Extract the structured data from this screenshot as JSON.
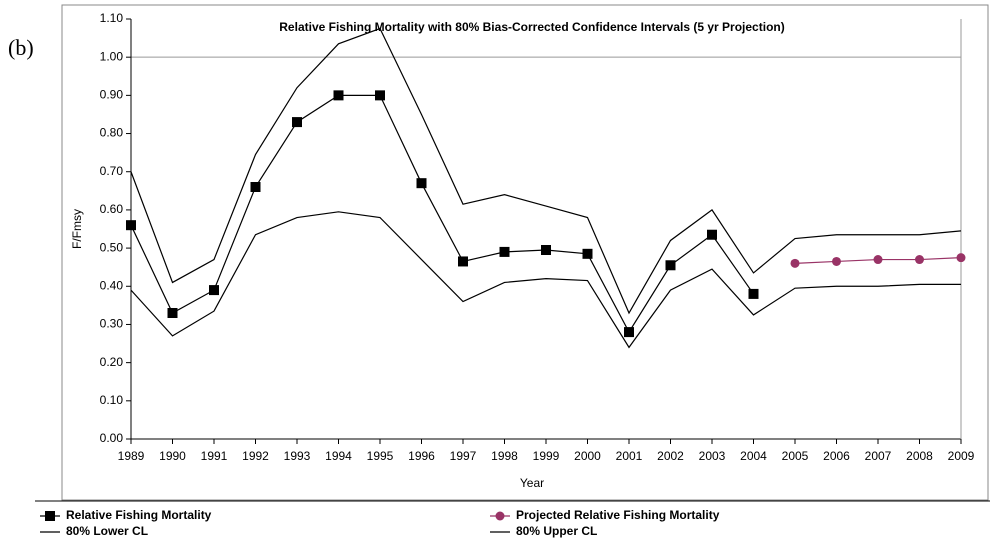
{
  "panel_label": "(b)",
  "chart_data": {
    "type": "line",
    "title": "Relative Fishing Mortality with 80% Bias-Corrected Confidence Intervals (5 yr Projection)",
    "x_label": "Year",
    "y_label": "F/Fmsy",
    "categories": [
      1989,
      1990,
      1991,
      1992,
      1993,
      1994,
      1995,
      1996,
      1997,
      1998,
      1999,
      2000,
      2001,
      2002,
      2003,
      2004,
      2005,
      2006,
      2007,
      2008,
      2009
    ],
    "ylim": [
      0,
      1.1
    ],
    "yticks": [
      {
        "value": 0,
        "label": "0.00"
      },
      {
        "value": 0.1,
        "label": "0.10"
      },
      {
        "value": 0.2,
        "label": "0.20"
      },
      {
        "value": 0.3,
        "label": "0.30"
      },
      {
        "value": 0.4,
        "label": "0.40"
      },
      {
        "value": 0.5,
        "label": "0.50"
      },
      {
        "value": 0.6,
        "label": "0.60"
      },
      {
        "value": 0.7,
        "label": "0.70"
      },
      {
        "value": 0.8,
        "label": "0.80"
      },
      {
        "value": 0.9,
        "label": "0.90"
      },
      {
        "value": 1.0,
        "label": "1.00"
      },
      {
        "value": 1.1,
        "label": "1.10"
      }
    ],
    "reference_line": 1.0,
    "series": [
      {
        "name": "Relative Fishing Mortality",
        "color": "#000000",
        "marker": "square",
        "values": [
          0.56,
          0.33,
          0.39,
          0.66,
          0.83,
          0.9,
          0.9,
          0.67,
          0.465,
          0.49,
          0.495,
          0.485,
          0.28,
          0.455,
          0.535,
          0.38,
          null,
          null,
          null,
          null,
          null
        ]
      },
      {
        "name": "Projected Relative Fishing Mortality",
        "color": "#993366",
        "marker": "circle",
        "values": [
          null,
          null,
          null,
          null,
          null,
          null,
          null,
          null,
          null,
          null,
          null,
          null,
          null,
          null,
          null,
          null,
          0.46,
          0.465,
          0.47,
          0.47,
          0.475
        ]
      },
      {
        "name": "80% Lower CL",
        "color": "#000000",
        "marker": "none",
        "values": [
          0.39,
          0.27,
          0.335,
          0.535,
          0.58,
          0.595,
          0.58,
          0.47,
          0.36,
          0.41,
          0.42,
          0.415,
          0.24,
          0.39,
          0.445,
          0.325,
          0.395,
          0.4,
          0.4,
          0.405,
          0.405
        ]
      },
      {
        "name": "80% Upper CL",
        "color": "#000000",
        "marker": "none",
        "values": [
          0.7,
          0.41,
          0.47,
          0.745,
          0.92,
          1.035,
          1.075,
          0.85,
          0.615,
          0.64,
          0.61,
          0.58,
          0.33,
          0.52,
          0.6,
          0.435,
          0.525,
          0.535,
          0.535,
          0.535,
          0.545
        ]
      }
    ]
  }
}
